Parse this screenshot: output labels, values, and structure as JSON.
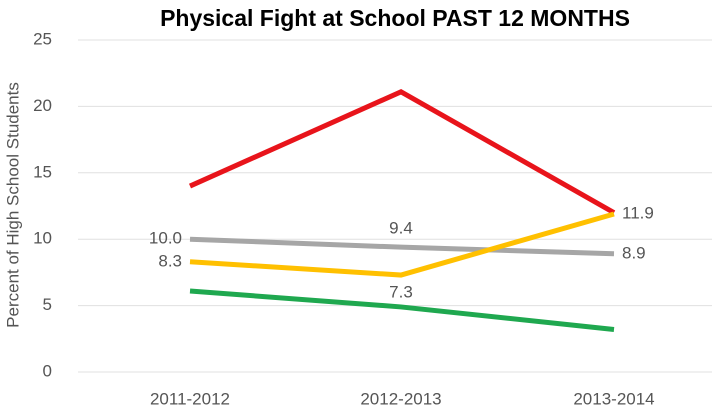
{
  "chart_data": {
    "type": "line",
    "title": "Physical Fight at School PAST 12 MONTHS",
    "y_label": "Percent of High School Students",
    "categories": [
      "2011-2012",
      "2012-2013",
      "2013-2014"
    ],
    "series": [
      {
        "color": "#e8141b",
        "values": [
          14.0,
          21.1,
          12.0
        ]
      },
      {
        "color": "#a6a6a6",
        "values": [
          10.0,
          9.4,
          8.9
        ],
        "value_labels": [
          "10.0",
          "9.4",
          "8.9"
        ]
      },
      {
        "color": "#ffc000",
        "values": [
          8.3,
          7.3,
          11.9
        ],
        "value_labels": [
          8.3,
          7.3,
          11.9
        ]
      },
      {
        "color": "#1fa84f",
        "values": [
          6.1,
          4.9,
          3.2
        ]
      }
    ],
    "ylim": [
      0,
      25
    ],
    "yticks": [
      0,
      5,
      10,
      15,
      20,
      25
    ],
    "grid": true
  }
}
